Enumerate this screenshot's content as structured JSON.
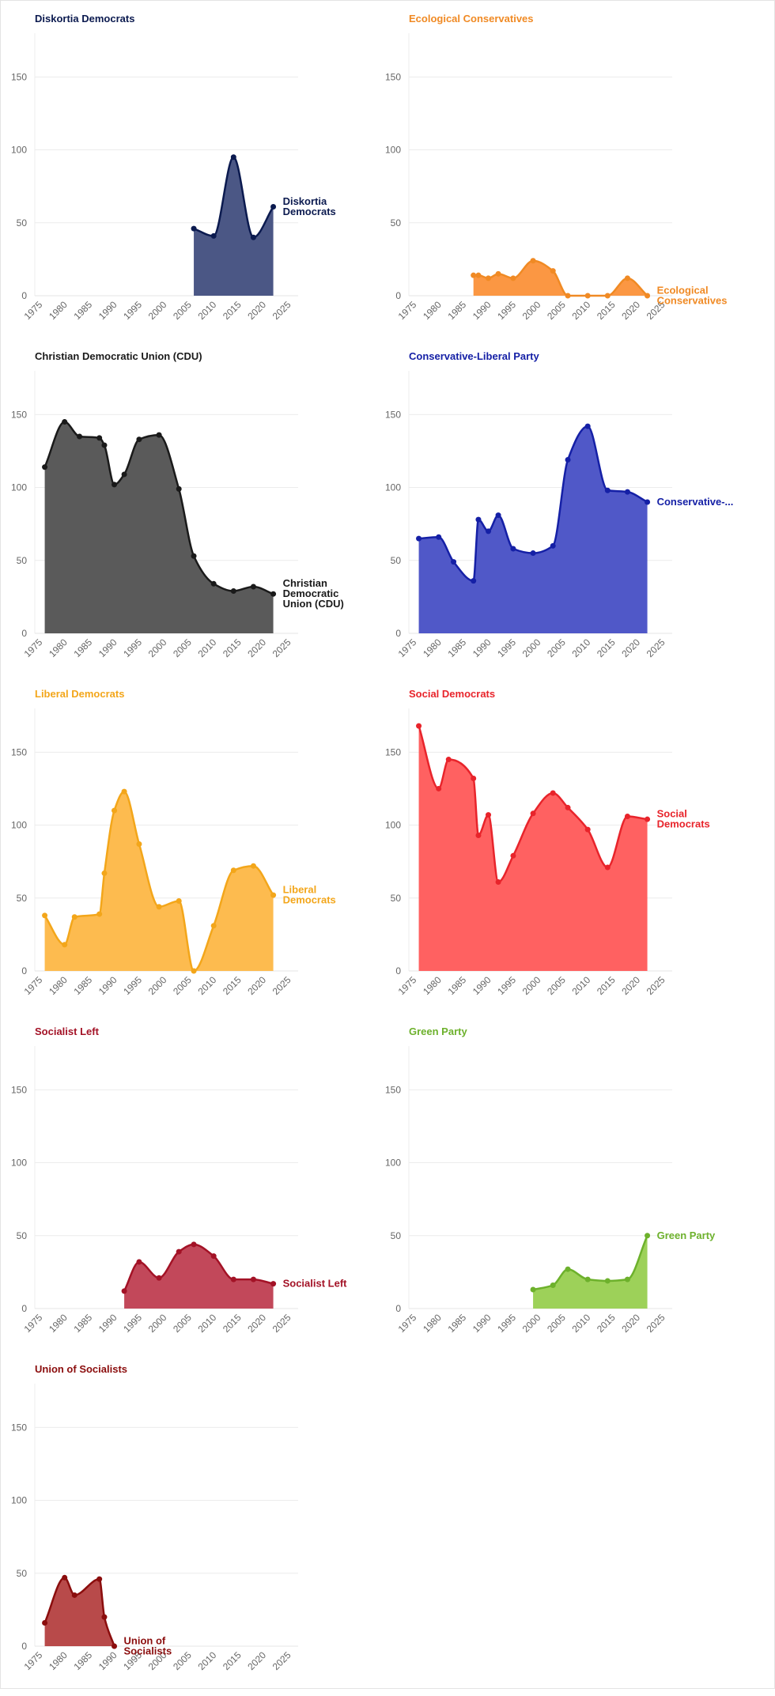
{
  "chart_data": [
    {
      "type": "area",
      "title": "Diskortia Democrats",
      "color": "#0b1a4f",
      "fill_color": "#4b5785",
      "end_label": [
        "Diskortia",
        "Democrats"
      ],
      "x_ticks": [
        1975,
        1980,
        1985,
        1990,
        1995,
        2000,
        2005,
        2010,
        2015,
        2020,
        2025
      ],
      "y_ticks": [
        0,
        50,
        100,
        150
      ],
      "xlim": [
        1974,
        2027
      ],
      "ylim": [
        0,
        180
      ],
      "grid": true,
      "x": [
        2006,
        2010,
        2014,
        2018,
        2022
      ],
      "y": [
        46,
        41,
        95,
        40,
        61
      ]
    },
    {
      "type": "area",
      "title": "Ecological Conservatives",
      "color": "#f08a24",
      "fill_color": "#fb9743",
      "end_label": [
        "Ecological",
        "Conservatives"
      ],
      "x_ticks": [
        1975,
        1980,
        1985,
        1990,
        1995,
        2000,
        2005,
        2010,
        2015,
        2020,
        2025
      ],
      "y_ticks": [
        0,
        50,
        100,
        150
      ],
      "xlim": [
        1974,
        2027
      ],
      "ylim": [
        0,
        180
      ],
      "grid": true,
      "x": [
        1987,
        1988,
        1990,
        1992,
        1995,
        1999,
        2003,
        2006,
        2010,
        2014,
        2018,
        2022
      ],
      "y": [
        14,
        14,
        12,
        15,
        12,
        24,
        17,
        0,
        0,
        0,
        12,
        0
      ]
    },
    {
      "type": "area",
      "title": "Christian Democratic Union (CDU)",
      "color": "#1a1a1a",
      "fill_color": "#5a5a5a",
      "end_label": [
        "Christian",
        "Democratic",
        "Union (CDU)"
      ],
      "x_ticks": [
        1975,
        1980,
        1985,
        1990,
        1995,
        2000,
        2005,
        2010,
        2015,
        2020,
        2025
      ],
      "y_ticks": [
        0,
        50,
        100,
        150
      ],
      "xlim": [
        1974,
        2027
      ],
      "ylim": [
        0,
        180
      ],
      "grid": true,
      "x": [
        1976,
        1980,
        1983,
        1987,
        1988,
        1990,
        1992,
        1995,
        1999,
        2003,
        2006,
        2010,
        2014,
        2018,
        2022
      ],
      "y": [
        114,
        145,
        135,
        134,
        129,
        102,
        109,
        133,
        136,
        99,
        53,
        34,
        29,
        32,
        27
      ]
    },
    {
      "type": "area",
      "title": "Conservative-Liberal Party",
      "color": "#1520a6",
      "fill_color": "#5058c8",
      "end_label": [
        "Conservative-..."
      ],
      "x_ticks": [
        1975,
        1980,
        1985,
        1990,
        1995,
        2000,
        2005,
        2010,
        2015,
        2020,
        2025
      ],
      "y_ticks": [
        0,
        50,
        100,
        150
      ],
      "xlim": [
        1974,
        2027
      ],
      "ylim": [
        0,
        180
      ],
      "grid": true,
      "x": [
        1976,
        1980,
        1983,
        1987,
        1988,
        1990,
        1992,
        1995,
        1999,
        2003,
        2006,
        2010,
        2014,
        2018,
        2022
      ],
      "y": [
        65,
        66,
        49,
        36,
        78,
        70,
        81,
        58,
        55,
        60,
        119,
        142,
        98,
        97,
        90
      ]
    },
    {
      "type": "area",
      "title": "Liberal Democrats",
      "color": "#f3a61a",
      "fill_color": "#fdbb4f",
      "end_label": [
        "Liberal",
        "Democrats"
      ],
      "x_ticks": [
        1975,
        1980,
        1985,
        1990,
        1995,
        2000,
        2005,
        2010,
        2015,
        2020,
        2025
      ],
      "y_ticks": [
        0,
        50,
        100,
        150
      ],
      "xlim": [
        1974,
        2027
      ],
      "ylim": [
        0,
        180
      ],
      "grid": true,
      "x": [
        1976,
        1980,
        1982,
        1987,
        1988,
        1990,
        1992,
        1995,
        1999,
        2003,
        2006,
        2010,
        2014,
        2018,
        2022
      ],
      "y": [
        38,
        18,
        37,
        39,
        67,
        110,
        123,
        87,
        44,
        48,
        0,
        31,
        69,
        72,
        52
      ]
    },
    {
      "type": "area",
      "title": "Social Democrats",
      "color": "#e8242b",
      "fill_color": "#ff6161",
      "end_label": [
        "Social",
        "Democrats"
      ],
      "x_ticks": [
        1975,
        1980,
        1985,
        1990,
        1995,
        2000,
        2005,
        2010,
        2015,
        2020,
        2025
      ],
      "y_ticks": [
        0,
        50,
        100,
        150
      ],
      "xlim": [
        1974,
        2027
      ],
      "ylim": [
        0,
        180
      ],
      "grid": true,
      "x": [
        1976,
        1980,
        1982,
        1987,
        1988,
        1990,
        1992,
        1995,
        1999,
        2003,
        2006,
        2010,
        2014,
        2018,
        2022
      ],
      "y": [
        168,
        125,
        145,
        132,
        93,
        107,
        61,
        79,
        108,
        122,
        112,
        97,
        71,
        106,
        104
      ]
    },
    {
      "type": "area",
      "title": "Socialist Left",
      "color": "#a31226",
      "fill_color": "#c2485a",
      "end_label": [
        "Socialist Left"
      ],
      "x_ticks": [
        1975,
        1980,
        1985,
        1990,
        1995,
        2000,
        2005,
        2010,
        2015,
        2020,
        2025
      ],
      "y_ticks": [
        0,
        50,
        100,
        150
      ],
      "xlim": [
        1974,
        2027
      ],
      "ylim": [
        0,
        180
      ],
      "grid": true,
      "x": [
        1992,
        1995,
        1999,
        2003,
        2006,
        2010,
        2014,
        2018,
        2022
      ],
      "y": [
        12,
        32,
        21,
        39,
        44,
        36,
        20,
        20,
        17
      ]
    },
    {
      "type": "area",
      "title": "Green Party",
      "color": "#6db12c",
      "fill_color": "#9dd159",
      "end_label": [
        "Green Party"
      ],
      "x_ticks": [
        1975,
        1980,
        1985,
        1990,
        1995,
        2000,
        2005,
        2010,
        2015,
        2020,
        2025
      ],
      "y_ticks": [
        0,
        50,
        100,
        150
      ],
      "xlim": [
        1974,
        2027
      ],
      "ylim": [
        0,
        180
      ],
      "grid": true,
      "x": [
        1999,
        2003,
        2006,
        2010,
        2014,
        2018,
        2022
      ],
      "y": [
        13,
        16,
        27,
        20,
        19,
        20,
        50
      ]
    },
    {
      "type": "area",
      "title": "Union of Socialists",
      "color": "#8b0d0d",
      "fill_color": "#b84a4a",
      "end_label": [
        "Union of",
        "Socialists"
      ],
      "x_ticks": [
        1975,
        1980,
        1985,
        1990,
        1995,
        2000,
        2005,
        2010,
        2015,
        2020,
        2025
      ],
      "y_ticks": [
        0,
        50,
        100,
        150
      ],
      "xlim": [
        1974,
        2027
      ],
      "ylim": [
        0,
        180
      ],
      "grid": true,
      "x": [
        1976,
        1980,
        1982,
        1987,
        1988,
        1990
      ],
      "y": [
        16,
        47,
        35,
        46,
        20,
        0
      ]
    }
  ]
}
